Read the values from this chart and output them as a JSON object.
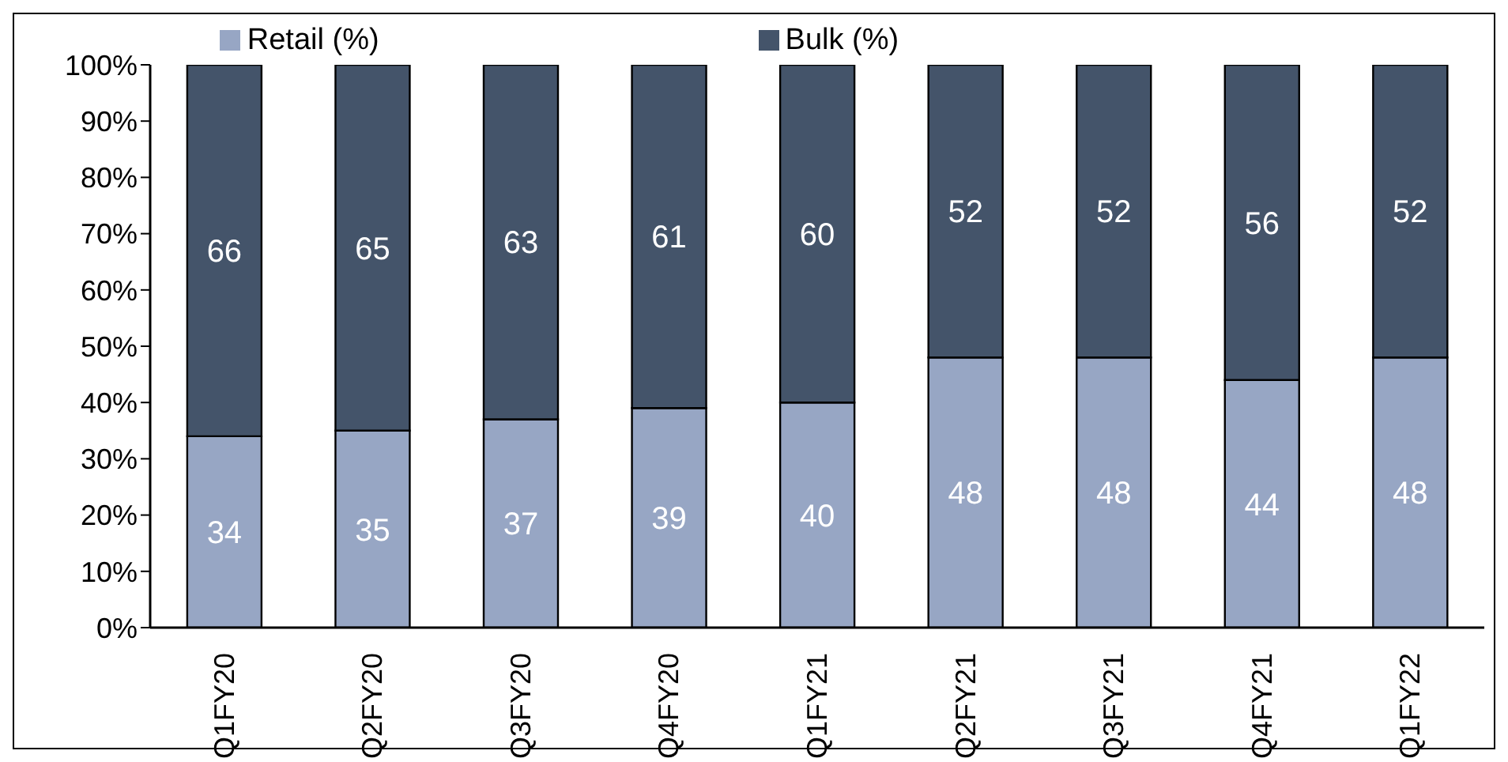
{
  "chart_data": {
    "type": "bar",
    "stacked": true,
    "categories": [
      "Q1FY20",
      "Q2FY20",
      "Q3FY20",
      "Q4FY20",
      "Q1FY21",
      "Q2FY21",
      "Q3FY21",
      "Q4FY21",
      "Q1FY22"
    ],
    "series": [
      {
        "name": "Retail (%)",
        "color": "#97a6c4",
        "values": [
          34,
          35,
          37,
          39,
          40,
          48,
          48,
          44,
          48
        ]
      },
      {
        "name": "Bulk (%)",
        "color": "#44546a",
        "values": [
          66,
          65,
          63,
          61,
          60,
          52,
          52,
          56,
          52
        ]
      }
    ],
    "ylim": [
      0,
      100
    ],
    "yticks": [
      {
        "value": 0,
        "label": "0%"
      },
      {
        "value": 10,
        "label": "10%"
      },
      {
        "value": 20,
        "label": "20%"
      },
      {
        "value": 30,
        "label": "30%"
      },
      {
        "value": 40,
        "label": "40%"
      },
      {
        "value": 50,
        "label": "50%"
      },
      {
        "value": 60,
        "label": "60%"
      },
      {
        "value": 70,
        "label": "70%"
      },
      {
        "value": 80,
        "label": "80%"
      },
      {
        "value": 90,
        "label": "90%"
      },
      {
        "value": 100,
        "label": "100%"
      }
    ],
    "data_labels": true,
    "legend": "top",
    "grid": false
  }
}
